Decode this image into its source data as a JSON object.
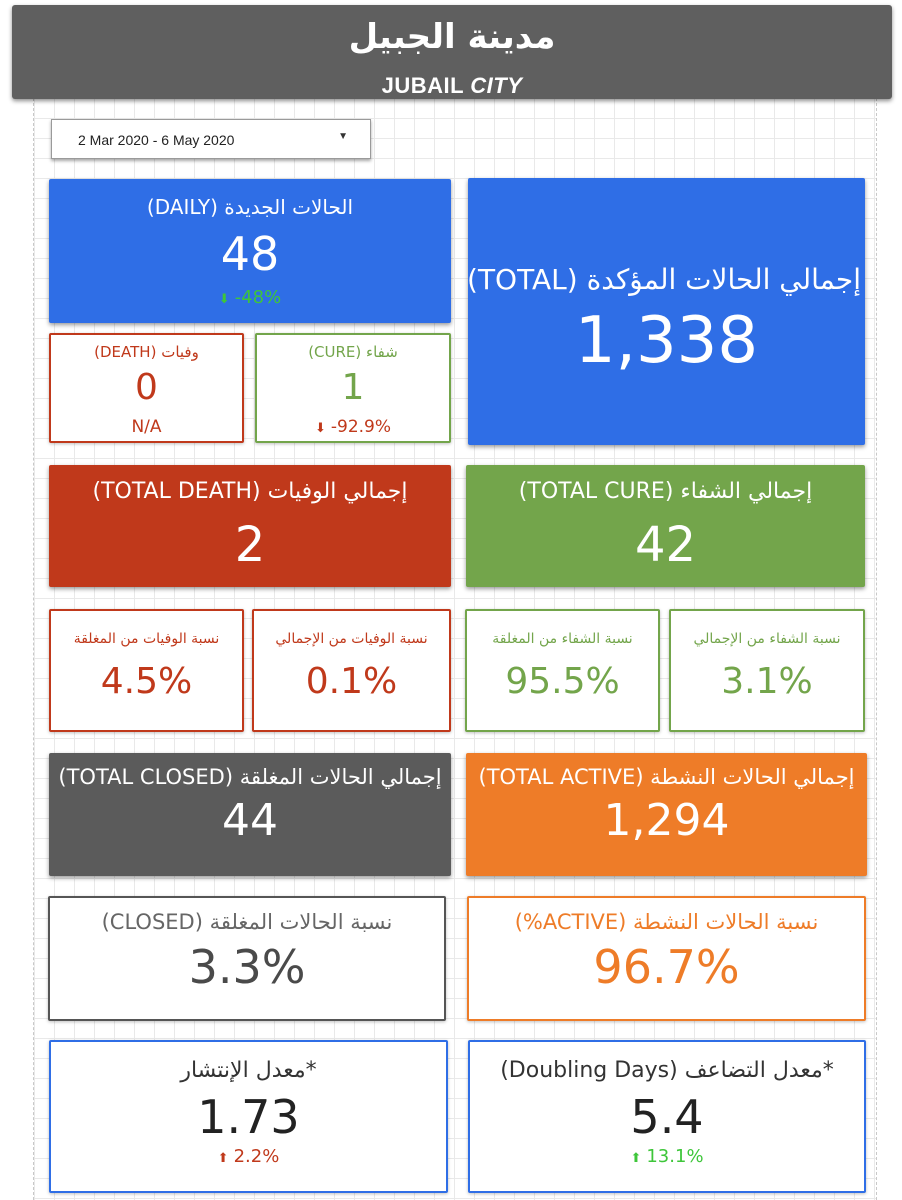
{
  "header": {
    "title_ar": "مدينة الجبيل",
    "title_en_part1": "JUBAIL ",
    "title_en_part2": "CITY"
  },
  "date_range": {
    "value": "2 Mar 2020 - 6 May 2020"
  },
  "colors": {
    "blue": "#2f6ee6",
    "red": "#c0391b",
    "green": "#73a54b",
    "gray": "#5b5b5b",
    "orange": "#ee7c28",
    "delta_up_green": "#3ec63a",
    "delta_down_red": "#c0391b"
  },
  "cards": {
    "daily_new": {
      "label": "الحالات الجديدة (DAILY)",
      "value": "48",
      "delta": "-48%",
      "delta_dir": "down"
    },
    "total_confirmed": {
      "label": "إجمالي الحالات المؤكدة (TOTAL)",
      "value": "1,338"
    },
    "daily_death": {
      "label": "وفيات (DEATH)",
      "value": "0",
      "sub": "N/A"
    },
    "daily_cure": {
      "label": "شفاء (CURE)",
      "value": "1",
      "delta": "-92.9%",
      "delta_dir": "down"
    },
    "total_death": {
      "label": "إجمالي الوفيات (TOTAL DEATH)",
      "value": "2"
    },
    "total_cure": {
      "label": "إجمالي الشفاء (TOTAL CURE)",
      "value": "42"
    },
    "death_of_closed": {
      "label": "نسبة الوفيات من المغلقة",
      "value": "4.5%"
    },
    "death_of_total": {
      "label": "نسبة الوفيات من الإجمالي",
      "value": "0.1%"
    },
    "cure_of_closed": {
      "label": "نسبة الشفاء من المغلقة",
      "value": "95.5%"
    },
    "cure_of_total": {
      "label": "نسبة الشفاء من الإجمالي",
      "value": "3.1%"
    },
    "total_closed": {
      "label": "إجمالي الحالات المغلقة (TOTAL CLOSED)",
      "value": "44"
    },
    "total_active": {
      "label": "إجمالي الحالات النشطة (TOTAL ACTIVE)",
      "value": "1,294"
    },
    "closed_pct": {
      "label": "نسبة الحالات المغلقة (CLOSED)",
      "value": "3.3%"
    },
    "active_pct": {
      "label": "نسبة الحالات النشطة (ACTIVE%)",
      "value": "96.7%"
    },
    "spread_rate": {
      "label": "*معدل الإنتشار",
      "value": "1.73",
      "delta": "2.2%",
      "delta_dir": "up"
    },
    "doubling_days": {
      "label": "*معدل التضاعف (Doubling Days)",
      "value": "5.4",
      "delta": "13.1%",
      "delta_dir": "up"
    }
  }
}
